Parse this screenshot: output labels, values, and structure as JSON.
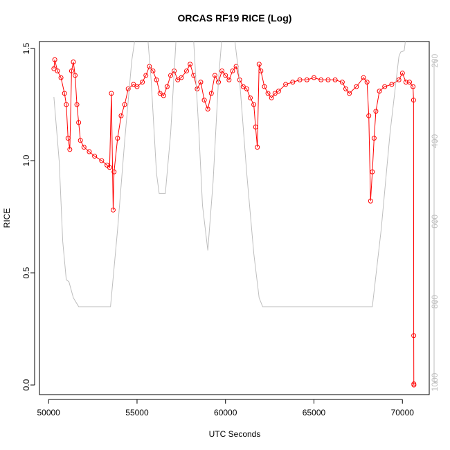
{
  "chart_data": {
    "type": "line",
    "title": "ORCAS RF19 RICE (Log)",
    "x_label": "UTC Seconds",
    "y_label": "RICE",
    "xlim": [
      49484,
      71516
    ],
    "xticks": [
      50000,
      55000,
      60000,
      65000,
      70000
    ],
    "ylim": [
      -0.043,
      1.531
    ],
    "yticks": [
      {
        "value": 0,
        "label": "0.0"
      },
      0.5,
      {
        "value": 1,
        "label": "1.0"
      },
      1.5
    ],
    "y2lim": [
      1031,
      152
    ],
    "y2ticks": [
      200,
      400,
      600,
      800,
      1000
    ],
    "series": [
      {
        "color": "#ff0000",
        "marker": "open-circle",
        "x": [
          50300,
          50350,
          50500,
          50700,
          50900,
          51000,
          51100,
          51200,
          51300,
          51400,
          51500,
          51600,
          51700,
          51800,
          52000,
          52300,
          52600,
          53000,
          53300,
          53450,
          53550,
          53650,
          53700,
          53900,
          54100,
          54300,
          54500,
          54800,
          55000,
          55300,
          55500,
          55700,
          55900,
          56100,
          56300,
          56500,
          56700,
          56900,
          57100,
          57300,
          57500,
          57800,
          58000,
          58200,
          58400,
          58600,
          58800,
          59000,
          59200,
          59400,
          59600,
          59800,
          60000,
          60200,
          60400,
          60600,
          60800,
          61000,
          61200,
          61400,
          61600,
          61700,
          61800,
          61900,
          62000,
          62200,
          62400,
          62600,
          62800,
          63000,
          63400,
          63800,
          64200,
          64600,
          65000,
          65400,
          65800,
          66200,
          66600,
          66800,
          67000,
          67400,
          67800,
          68000,
          68100,
          68200,
          68300,
          68400,
          68500,
          68700,
          69000,
          69400,
          69800,
          70000,
          70200,
          70400,
          70600,
          70630,
          70640,
          70645,
          70650
        ],
        "values": [
          1.41,
          1.45,
          1.4,
          1.37,
          1.3,
          1.25,
          1.1,
          1.05,
          1.4,
          1.44,
          1.38,
          1.25,
          1.17,
          1.09,
          1.06,
          1.04,
          1.02,
          1.0,
          0.98,
          0.97,
          1.3,
          0.78,
          0.95,
          1.1,
          1.2,
          1.25,
          1.32,
          1.34,
          1.33,
          1.35,
          1.38,
          1.42,
          1.4,
          1.36,
          1.3,
          1.29,
          1.33,
          1.38,
          1.4,
          1.36,
          1.37,
          1.4,
          1.43,
          1.38,
          1.32,
          1.35,
          1.27,
          1.23,
          1.3,
          1.38,
          1.35,
          1.4,
          1.38,
          1.36,
          1.4,
          1.42,
          1.36,
          1.33,
          1.32,
          1.28,
          1.25,
          1.15,
          1.06,
          1.43,
          1.4,
          1.33,
          1.3,
          1.28,
          1.3,
          1.31,
          1.34,
          1.35,
          1.36,
          1.36,
          1.37,
          1.36,
          1.36,
          1.36,
          1.35,
          1.32,
          1.3,
          1.33,
          1.37,
          1.35,
          1.2,
          0.82,
          0.95,
          1.1,
          1.22,
          1.31,
          1.33,
          1.34,
          1.36,
          1.39,
          1.35,
          1.35,
          1.33,
          1.27,
          0.22,
          0.005,
          0.0
        ]
      },
      {
        "color": "#bebebe",
        "axis": "y2",
        "x": [
          50300,
          50600,
          50800,
          51000,
          51150,
          51400,
          51700,
          53500,
          53900,
          54300,
          54700,
          54900,
          55600,
          55800,
          56100,
          56250,
          56600,
          56900,
          57200,
          58200,
          58500,
          58700,
          59000,
          59300,
          59600,
          59800,
          60500,
          60800,
          61200,
          61600,
          61900,
          62100,
          68300,
          68800,
          69300,
          69800,
          69900,
          70100,
          70200
        ],
        "values": [
          290,
          450,
          650,
          745,
          750,
          790,
          812,
          812,
          620,
          400,
          200,
          140,
          140,
          250,
          480,
          530,
          530,
          380,
          150,
          150,
          380,
          560,
          672,
          500,
          250,
          140,
          140,
          250,
          480,
          680,
          790,
          812,
          812,
          620,
          380,
          190,
          178,
          175,
          140
        ]
      }
    ]
  }
}
